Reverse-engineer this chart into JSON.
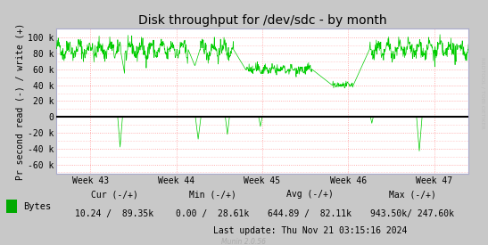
{
  "title": "Disk throughput for /dev/sdc - by month",
  "ylabel": "Pr second read (-) / write (+)",
  "yticks": [
    -60000,
    -40000,
    -20000,
    0,
    20000,
    40000,
    60000,
    80000,
    100000
  ],
  "ytick_labels": [
    "-60 k",
    "-40 k",
    "-20 k",
    "0",
    "20 k",
    "40 k",
    "60 k",
    "80 k",
    "100 k"
  ],
  "ylim": [
    -72000,
    112000
  ],
  "xlim": [
    0,
    1
  ],
  "xtick_positions": [
    0.0833,
    0.2916,
    0.5,
    0.7083,
    0.9166
  ],
  "xtick_labels": [
    "Week 43",
    "Week 44",
    "Week 45",
    "Week 46",
    "Week 47"
  ],
  "line_color": "#00CC00",
  "fig_bg_color": "#C8C8C8",
  "plot_bg_color": "#FFFFFF",
  "grid_color": "#FF9999",
  "zero_line_color": "#000000",
  "legend_label": "Bytes",
  "legend_color": "#00AA00",
  "cur_label": "Cur (-/+)",
  "cur_val": "10.24 /  89.35k",
  "min_label": "Min (-/+)",
  "min_val": "0.00 /  28.61k",
  "avg_label": "Avg (-/+)",
  "avg_val": "644.89 /  82.11k",
  "max_label": "Max (-/+)",
  "max_val": "943.50k/ 247.60k",
  "last_update": "Last update: Thu Nov 21 03:15:16 2024",
  "munin_version": "Munin 2.0.56",
  "rrdtool_label": "RRDTOOL / TOBI OETIKER",
  "title_fontsize": 10,
  "axis_fontsize": 7,
  "legend_fontsize": 7.5,
  "stats_fontsize": 7
}
